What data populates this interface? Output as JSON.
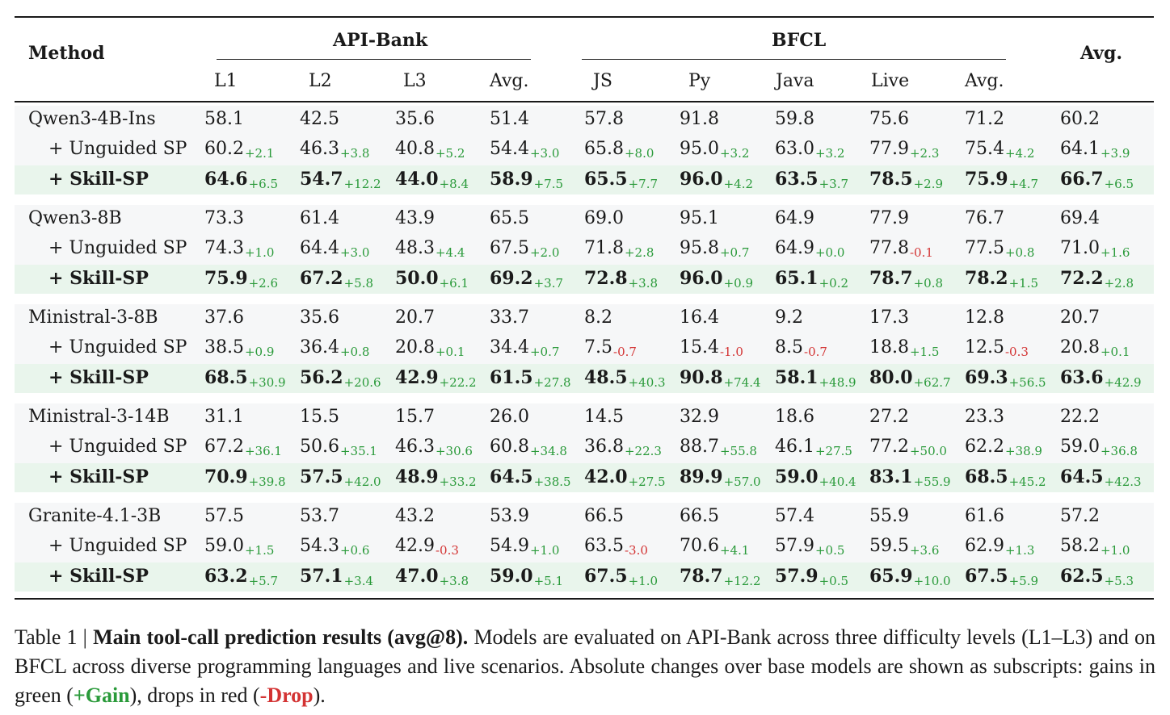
{
  "header": {
    "method": "Method",
    "group_apibank": "API-Bank",
    "group_bfcl": "BFCL",
    "avg_overall": "Avg.",
    "columns": [
      "L1",
      "L2",
      "L3",
      "Avg.",
      "JS",
      "Py",
      "Java",
      "Live",
      "Avg."
    ]
  },
  "colors": {
    "gain": "#2a9a3a",
    "drop": "#d33333",
    "highlight_row": "#e9f5ec",
    "base_row": "#f6f7f8"
  },
  "groups": [
    {
      "rows": [
        {
          "method": "Qwen3-4B-Ins",
          "style": "base",
          "cells": [
            [
              "58.1",
              ""
            ],
            [
              "42.5",
              ""
            ],
            [
              "35.6",
              ""
            ],
            [
              "51.4",
              ""
            ],
            [
              "57.8",
              ""
            ],
            [
              "91.8",
              ""
            ],
            [
              "59.8",
              ""
            ],
            [
              "75.6",
              ""
            ],
            [
              "71.2",
              ""
            ],
            [
              "60.2",
              ""
            ]
          ]
        },
        {
          "method": "+ Unguided SP",
          "style": "unguided",
          "cells": [
            [
              "60.2",
              "+2.1"
            ],
            [
              "46.3",
              "+3.8"
            ],
            [
              "40.8",
              "+5.2"
            ],
            [
              "54.4",
              "+3.0"
            ],
            [
              "65.8",
              "+8.0"
            ],
            [
              "95.0",
              "+3.2"
            ],
            [
              "63.0",
              "+3.2"
            ],
            [
              "77.9",
              "+2.3"
            ],
            [
              "75.4",
              "+4.2"
            ],
            [
              "64.1",
              "+3.9"
            ]
          ]
        },
        {
          "method": "+ Skill-SP",
          "style": "skill",
          "cells": [
            [
              "64.6",
              "+6.5"
            ],
            [
              "54.7",
              "+12.2"
            ],
            [
              "44.0",
              "+8.4"
            ],
            [
              "58.9",
              "+7.5"
            ],
            [
              "65.5",
              "+7.7"
            ],
            [
              "96.0",
              "+4.2"
            ],
            [
              "63.5",
              "+3.7"
            ],
            [
              "78.5",
              "+2.9"
            ],
            [
              "75.9",
              "+4.7"
            ],
            [
              "66.7",
              "+6.5"
            ]
          ]
        }
      ]
    },
    {
      "rows": [
        {
          "method": "Qwen3-8B",
          "style": "base",
          "cells": [
            [
              "73.3",
              ""
            ],
            [
              "61.4",
              ""
            ],
            [
              "43.9",
              ""
            ],
            [
              "65.5",
              ""
            ],
            [
              "69.0",
              ""
            ],
            [
              "95.1",
              ""
            ],
            [
              "64.9",
              ""
            ],
            [
              "77.9",
              ""
            ],
            [
              "76.7",
              ""
            ],
            [
              "69.4",
              ""
            ]
          ]
        },
        {
          "method": "+ Unguided SP",
          "style": "unguided",
          "cells": [
            [
              "74.3",
              "+1.0"
            ],
            [
              "64.4",
              "+3.0"
            ],
            [
              "48.3",
              "+4.4"
            ],
            [
              "67.5",
              "+2.0"
            ],
            [
              "71.8",
              "+2.8"
            ],
            [
              "95.8",
              "+0.7"
            ],
            [
              "64.9",
              "+0.0"
            ],
            [
              "77.8",
              "-0.1"
            ],
            [
              "77.5",
              "+0.8"
            ],
            [
              "71.0",
              "+1.6"
            ]
          ]
        },
        {
          "method": "+ Skill-SP",
          "style": "skill",
          "cells": [
            [
              "75.9",
              "+2.6"
            ],
            [
              "67.2",
              "+5.8"
            ],
            [
              "50.0",
              "+6.1"
            ],
            [
              "69.2",
              "+3.7"
            ],
            [
              "72.8",
              "+3.8"
            ],
            [
              "96.0",
              "+0.9"
            ],
            [
              "65.1",
              "+0.2"
            ],
            [
              "78.7",
              "+0.8"
            ],
            [
              "78.2",
              "+1.5"
            ],
            [
              "72.2",
              "+2.8"
            ]
          ]
        }
      ]
    },
    {
      "rows": [
        {
          "method": "Ministral-3-8B",
          "style": "base",
          "cells": [
            [
              "37.6",
              ""
            ],
            [
              "35.6",
              ""
            ],
            [
              "20.7",
              ""
            ],
            [
              "33.7",
              ""
            ],
            [
              "8.2",
              ""
            ],
            [
              "16.4",
              ""
            ],
            [
              "9.2",
              ""
            ],
            [
              "17.3",
              ""
            ],
            [
              "12.8",
              ""
            ],
            [
              "20.7",
              ""
            ]
          ]
        },
        {
          "method": "+ Unguided SP",
          "style": "unguided",
          "cells": [
            [
              "38.5",
              "+0.9"
            ],
            [
              "36.4",
              "+0.8"
            ],
            [
              "20.8",
              "+0.1"
            ],
            [
              "34.4",
              "+0.7"
            ],
            [
              "7.5",
              "-0.7"
            ],
            [
              "15.4",
              "-1.0"
            ],
            [
              "8.5",
              "-0.7"
            ],
            [
              "18.8",
              "+1.5"
            ],
            [
              "12.5",
              "-0.3"
            ],
            [
              "20.8",
              "+0.1"
            ]
          ]
        },
        {
          "method": "+ Skill-SP",
          "style": "skill",
          "cells": [
            [
              "68.5",
              "+30.9"
            ],
            [
              "56.2",
              "+20.6"
            ],
            [
              "42.9",
              "+22.2"
            ],
            [
              "61.5",
              "+27.8"
            ],
            [
              "48.5",
              "+40.3"
            ],
            [
              "90.8",
              "+74.4"
            ],
            [
              "58.1",
              "+48.9"
            ],
            [
              "80.0",
              "+62.7"
            ],
            [
              "69.3",
              "+56.5"
            ],
            [
              "63.6",
              "+42.9"
            ]
          ]
        }
      ]
    },
    {
      "rows": [
        {
          "method": "Ministral-3-14B",
          "style": "base",
          "cells": [
            [
              "31.1",
              ""
            ],
            [
              "15.5",
              ""
            ],
            [
              "15.7",
              ""
            ],
            [
              "26.0",
              ""
            ],
            [
              "14.5",
              ""
            ],
            [
              "32.9",
              ""
            ],
            [
              "18.6",
              ""
            ],
            [
              "27.2",
              ""
            ],
            [
              "23.3",
              ""
            ],
            [
              "22.2",
              ""
            ]
          ]
        },
        {
          "method": "+ Unguided SP",
          "style": "unguided",
          "cells": [
            [
              "67.2",
              "+36.1"
            ],
            [
              "50.6",
              "+35.1"
            ],
            [
              "46.3",
              "+30.6"
            ],
            [
              "60.8",
              "+34.8"
            ],
            [
              "36.8",
              "+22.3"
            ],
            [
              "88.7",
              "+55.8"
            ],
            [
              "46.1",
              "+27.5"
            ],
            [
              "77.2",
              "+50.0"
            ],
            [
              "62.2",
              "+38.9"
            ],
            [
              "59.0",
              "+36.8"
            ]
          ]
        },
        {
          "method": "+ Skill-SP",
          "style": "skill",
          "cells": [
            [
              "70.9",
              "+39.8"
            ],
            [
              "57.5",
              "+42.0"
            ],
            [
              "48.9",
              "+33.2"
            ],
            [
              "64.5",
              "+38.5"
            ],
            [
              "42.0",
              "+27.5"
            ],
            [
              "89.9",
              "+57.0"
            ],
            [
              "59.0",
              "+40.4"
            ],
            [
              "83.1",
              "+55.9"
            ],
            [
              "68.5",
              "+45.2"
            ],
            [
              "64.5",
              "+42.3"
            ]
          ]
        }
      ]
    },
    {
      "rows": [
        {
          "method": "Granite-4.1-3B",
          "style": "base",
          "cells": [
            [
              "57.5",
              ""
            ],
            [
              "53.7",
              ""
            ],
            [
              "43.2",
              ""
            ],
            [
              "53.9",
              ""
            ],
            [
              "66.5",
              ""
            ],
            [
              "66.5",
              ""
            ],
            [
              "57.4",
              ""
            ],
            [
              "55.9",
              ""
            ],
            [
              "61.6",
              ""
            ],
            [
              "57.2",
              ""
            ]
          ]
        },
        {
          "method": "+ Unguided SP",
          "style": "unguided",
          "cells": [
            [
              "59.0",
              "+1.5"
            ],
            [
              "54.3",
              "+0.6"
            ],
            [
              "42.9",
              "-0.3"
            ],
            [
              "54.9",
              "+1.0"
            ],
            [
              "63.5",
              "-3.0"
            ],
            [
              "70.6",
              "+4.1"
            ],
            [
              "57.9",
              "+0.5"
            ],
            [
              "59.5",
              "+3.6"
            ],
            [
              "62.9",
              "+1.3"
            ],
            [
              "58.2",
              "+1.0"
            ]
          ]
        },
        {
          "method": "+ Skill-SP",
          "style": "skill",
          "cells": [
            [
              "63.2",
              "+5.7"
            ],
            [
              "57.1",
              "+3.4"
            ],
            [
              "47.0",
              "+3.8"
            ],
            [
              "59.0",
              "+5.1"
            ],
            [
              "67.5",
              "+1.0"
            ],
            [
              "78.7",
              "+12.2"
            ],
            [
              "57.9",
              "+0.5"
            ],
            [
              "65.9",
              "+10.0"
            ],
            [
              "67.5",
              "+5.9"
            ],
            [
              "62.5",
              "+5.3"
            ]
          ]
        }
      ]
    }
  ],
  "caption": {
    "prefix": "Table 1 | ",
    "title": "Main tool-call prediction results (avg@8).",
    "body": " Models are evaluated on API-Bank across three difficulty levels (L1–L3) and on BFCL across diverse programming languages and live scenarios. Absolute changes over base models are shown as subscripts: gains in green (",
    "gain_label": "+Gain",
    "middle": "), drops in red (",
    "drop_label": "-Drop",
    "suffix": ")."
  }
}
